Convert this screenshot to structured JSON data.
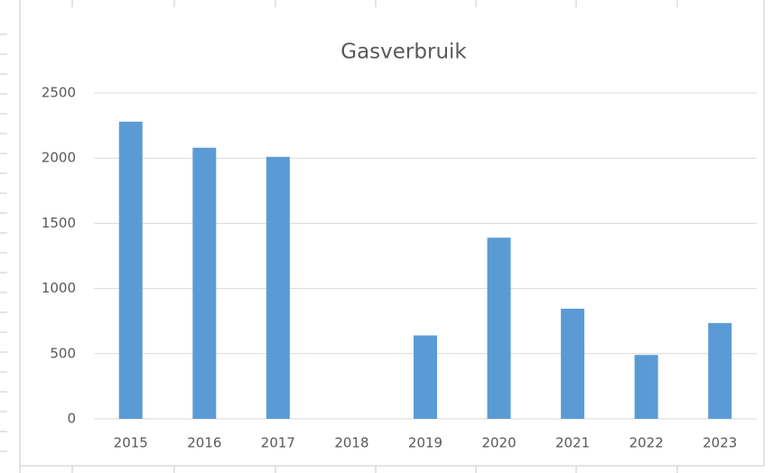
{
  "chart_data": {
    "type": "bar",
    "title": "Gasverbruik",
    "categories": [
      "2015",
      "2016",
      "2017",
      "2018",
      "2019",
      "2020",
      "2021",
      "2022",
      "2023"
    ],
    "values": [
      2280,
      2080,
      2010,
      null,
      640,
      1390,
      845,
      490,
      735
    ],
    "color": "#5b9bd5",
    "ylim": [
      0,
      2500
    ],
    "yticks": [
      0,
      500,
      1000,
      1500,
      2000,
      2500
    ],
    "grid": true
  }
}
